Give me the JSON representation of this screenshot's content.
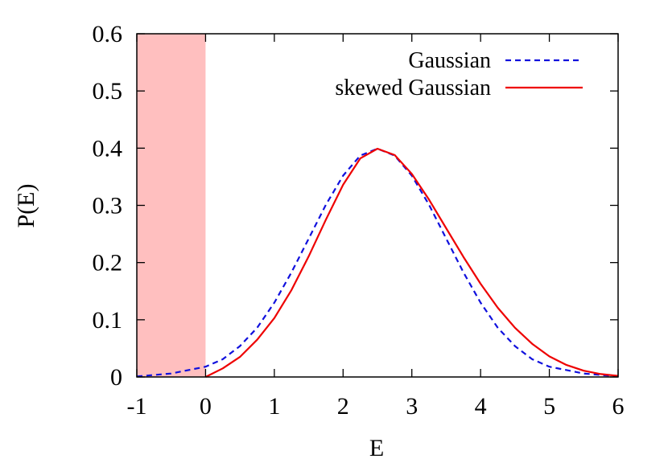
{
  "chart_data": {
    "type": "line",
    "title": "",
    "xlabel": "E",
    "ylabel": "P(E)",
    "xlim": [
      -1,
      6
    ],
    "ylim": [
      0,
      0.6
    ],
    "x_ticks": [
      "-1",
      "0",
      "1",
      "2",
      "3",
      "4",
      "5",
      "6"
    ],
    "y_ticks": [
      "0",
      "0.1",
      "0.2",
      "0.3",
      "0.4",
      "0.5",
      "0.6"
    ],
    "grid": false,
    "legend_position": "top-right",
    "shaded_region": {
      "x_from": -1,
      "x_to": 0,
      "color": "#ffbfbf"
    },
    "series": [
      {
        "name": "Gaussian",
        "style": "dashed",
        "color": "#1010dd",
        "x": [
          -1,
          -0.5,
          0,
          0.25,
          0.5,
          0.75,
          1,
          1.25,
          1.5,
          1.75,
          2,
          2.25,
          2.5,
          2.75,
          3,
          3.25,
          3.5,
          3.75,
          4,
          4.25,
          4.5,
          4.75,
          5,
          5.5,
          6
        ],
        "y": [
          0.001,
          0.006,
          0.018,
          0.031,
          0.054,
          0.086,
          0.13,
          0.183,
          0.242,
          0.301,
          0.352,
          0.387,
          0.399,
          0.387,
          0.352,
          0.301,
          0.242,
          0.183,
          0.13,
          0.086,
          0.054,
          0.031,
          0.018,
          0.006,
          0.001
        ]
      },
      {
        "name": "skewed Gaussian",
        "style": "solid",
        "color": "#ee0000",
        "x": [
          0,
          0.25,
          0.5,
          0.75,
          1,
          1.25,
          1.5,
          1.75,
          2,
          2.25,
          2.5,
          2.75,
          3,
          3.25,
          3.5,
          3.75,
          4,
          4.25,
          4.5,
          4.75,
          5,
          5.25,
          5.5,
          5.75,
          6
        ],
        "y": [
          0,
          0.015,
          0.035,
          0.065,
          0.103,
          0.152,
          0.211,
          0.275,
          0.336,
          0.382,
          0.399,
          0.388,
          0.355,
          0.31,
          0.26,
          0.21,
          0.163,
          0.121,
          0.086,
          0.058,
          0.036,
          0.021,
          0.011,
          0.005,
          0.002
        ]
      }
    ]
  }
}
